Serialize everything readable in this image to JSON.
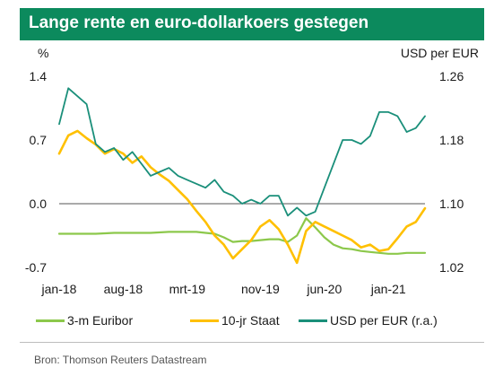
{
  "title": "Lange rente en euro-dollarkoers gestegen",
  "source": "Bron: Thomson Reuters Datastream",
  "colors": {
    "title_bg": "#0c8a5d",
    "euribor": "#8cc84b",
    "staat": "#ffc000",
    "usd": "#1a8f7a",
    "axis": "#555555"
  },
  "chart_data": {
    "type": "line",
    "y_left_label": "%",
    "y_right_label": "USD per EUR",
    "y_left_ticks": [
      {
        "value": 1.4,
        "label": "1.4"
      },
      {
        "value": 0.7,
        "label": "0.7"
      },
      {
        "value": 0.0,
        "label": "0.0"
      },
      {
        "value": -0.7,
        "label": "-0.7"
      }
    ],
    "y_right_ticks": [
      {
        "value": 1.26,
        "label": "1.26"
      },
      {
        "value": 1.18,
        "label": "1.18"
      },
      {
        "value": 1.1,
        "label": "1.10"
      },
      {
        "value": 1.02,
        "label": "1.02"
      }
    ],
    "y_left_range": [
      -0.7,
      1.4
    ],
    "y_right_range": [
      1.02,
      1.26
    ],
    "x_range": [
      "2018-01",
      "2021-05"
    ],
    "x_ticks": [
      {
        "date": "2018-01",
        "label": "jan-18"
      },
      {
        "date": "2018-08",
        "label": "aug-18"
      },
      {
        "date": "2019-03",
        "label": "mrt-19"
      },
      {
        "date": "2019-11",
        "label": "nov-19"
      },
      {
        "date": "2020-06",
        "label": "jun-20"
      },
      {
        "date": "2021-01",
        "label": "jan-21"
      }
    ],
    "series": [
      {
        "name": "3-m Euribor",
        "axis": "left",
        "x": [
          "2018-01",
          "2018-03",
          "2018-05",
          "2018-07",
          "2018-09",
          "2018-11",
          "2019-01",
          "2019-03",
          "2019-04",
          "2019-05",
          "2019-06",
          "2019-07",
          "2019-08",
          "2019-09",
          "2019-10",
          "2019-11",
          "2019-12",
          "2020-01",
          "2020-02",
          "2020-03",
          "2020-04",
          "2020-05",
          "2020-06",
          "2020-07",
          "2020-08",
          "2020-09",
          "2020-10",
          "2020-11",
          "2020-12",
          "2021-01",
          "2021-02",
          "2021-03",
          "2021-04",
          "2021-05"
        ],
        "values": [
          -0.33,
          -0.33,
          -0.33,
          -0.32,
          -0.32,
          -0.32,
          -0.31,
          -0.31,
          -0.31,
          -0.32,
          -0.33,
          -0.37,
          -0.42,
          -0.41,
          -0.41,
          -0.4,
          -0.39,
          -0.39,
          -0.42,
          -0.35,
          -0.16,
          -0.26,
          -0.37,
          -0.45,
          -0.49,
          -0.5,
          -0.52,
          -0.53,
          -0.54,
          -0.55,
          -0.55,
          -0.54,
          -0.54,
          -0.54
        ]
      },
      {
        "name": "10-jr Staat",
        "axis": "left",
        "x": [
          "2018-01",
          "2018-02",
          "2018-03",
          "2018-04",
          "2018-05",
          "2018-06",
          "2018-07",
          "2018-08",
          "2018-09",
          "2018-10",
          "2018-11",
          "2018-12",
          "2019-01",
          "2019-02",
          "2019-03",
          "2019-04",
          "2019-05",
          "2019-06",
          "2019-07",
          "2019-08",
          "2019-09",
          "2019-10",
          "2019-11",
          "2019-12",
          "2020-01",
          "2020-02",
          "2020-03",
          "2020-04",
          "2020-05",
          "2020-06",
          "2020-07",
          "2020-08",
          "2020-09",
          "2020-10",
          "2020-11",
          "2020-12",
          "2021-01",
          "2021-02",
          "2021-03",
          "2021-04",
          "2021-05"
        ],
        "values": [
          0.55,
          0.75,
          0.8,
          0.72,
          0.65,
          0.55,
          0.6,
          0.55,
          0.45,
          0.52,
          0.4,
          0.32,
          0.25,
          0.15,
          0.05,
          -0.08,
          -0.2,
          -0.35,
          -0.45,
          -0.6,
          -0.5,
          -0.4,
          -0.25,
          -0.18,
          -0.28,
          -0.45,
          -0.65,
          -0.3,
          -0.2,
          -0.25,
          -0.3,
          -0.35,
          -0.4,
          -0.48,
          -0.45,
          -0.52,
          -0.5,
          -0.38,
          -0.25,
          -0.2,
          -0.05
        ]
      },
      {
        "name": "USD per EUR (r.a.)",
        "axis": "right",
        "x": [
          "2018-01",
          "2018-02",
          "2018-03",
          "2018-04",
          "2018-05",
          "2018-06",
          "2018-07",
          "2018-08",
          "2018-09",
          "2018-10",
          "2018-11",
          "2018-12",
          "2019-01",
          "2019-02",
          "2019-03",
          "2019-04",
          "2019-05",
          "2019-06",
          "2019-07",
          "2019-08",
          "2019-09",
          "2019-10",
          "2019-11",
          "2019-12",
          "2020-01",
          "2020-02",
          "2020-03",
          "2020-04",
          "2020-05",
          "2020-06",
          "2020-07",
          "2020-08",
          "2020-09",
          "2020-10",
          "2020-11",
          "2020-12",
          "2021-01",
          "2021-02",
          "2021-03",
          "2021-04",
          "2021-05"
        ],
        "values": [
          1.2,
          1.245,
          1.235,
          1.225,
          1.175,
          1.165,
          1.17,
          1.155,
          1.165,
          1.15,
          1.135,
          1.14,
          1.145,
          1.135,
          1.13,
          1.125,
          1.12,
          1.13,
          1.115,
          1.11,
          1.1,
          1.105,
          1.1,
          1.11,
          1.11,
          1.085,
          1.095,
          1.085,
          1.09,
          1.12,
          1.15,
          1.18,
          1.18,
          1.175,
          1.185,
          1.215,
          1.215,
          1.21,
          1.19,
          1.195,
          1.21
        ]
      }
    ],
    "legend_position": "bottom"
  },
  "legend": {
    "euribor": "3-m Euribor",
    "staat": "10-jr Staat",
    "usd": "USD per EUR (r.a.)"
  }
}
